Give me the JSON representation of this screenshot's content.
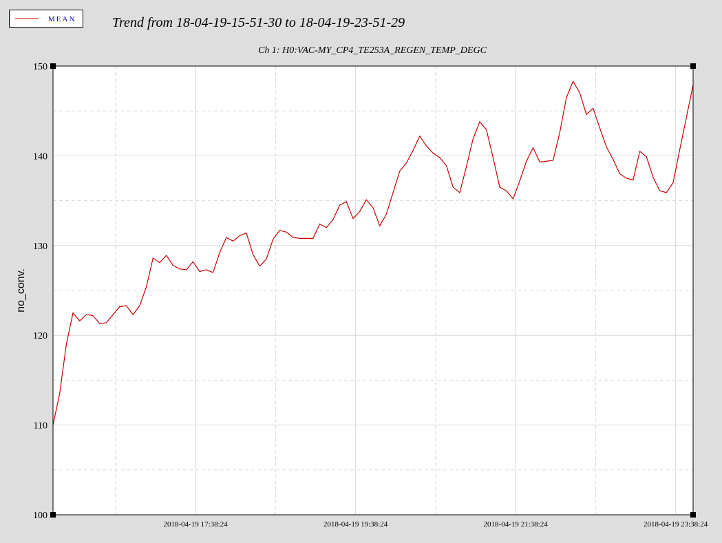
{
  "chart_data": {
    "type": "line",
    "title": "Trend from 18-04-19-15-51-30 to 18-04-19-23-51-29",
    "subtitle": "Ch 1: H0:VAC-MY_CP4_TE253A_REGEN_TEMP_DEGC",
    "y_label": "no_conv.",
    "legend": "top-left",
    "grid": true,
    "xlim": [
      "2018-04-19 15:51:30",
      "2018-04-19 23:51:29"
    ],
    "xticks": [
      "2018-04-19 17:38:24",
      "2018-04-19 19:38:24",
      "2018-04-19 21:38:24",
      "2018-04-19 23:38:24"
    ],
    "xticks_minor": [
      "2018-04-19 16:38:24",
      "2018-04-19 18:38:24",
      "2018-04-19 20:38:24",
      "2018-04-19 22:38:24"
    ],
    "ylim": [
      100,
      150
    ],
    "yticks": [
      100,
      110,
      120,
      130,
      140,
      150
    ],
    "yticks_minor": [
      105,
      115,
      125,
      135,
      145
    ],
    "x": [
      "2018-04-19 15:51:30",
      "2018-04-19 15:56:30",
      "2018-04-19 16:01:30",
      "2018-04-19 16:06:30",
      "2018-04-19 16:11:30",
      "2018-04-19 16:16:30",
      "2018-04-19 16:21:30",
      "2018-04-19 16:26:30",
      "2018-04-19 16:31:30",
      "2018-04-19 16:36:30",
      "2018-04-19 16:41:30",
      "2018-04-19 16:46:30",
      "2018-04-19 16:51:30",
      "2018-04-19 16:56:30",
      "2018-04-19 17:01:30",
      "2018-04-19 17:06:30",
      "2018-04-19 17:11:30",
      "2018-04-19 17:16:30",
      "2018-04-19 17:21:30",
      "2018-04-19 17:26:30",
      "2018-04-19 17:31:30",
      "2018-04-19 17:36:30",
      "2018-04-19 17:41:30",
      "2018-04-19 17:46:30",
      "2018-04-19 17:51:30",
      "2018-04-19 17:56:30",
      "2018-04-19 18:01:30",
      "2018-04-19 18:06:30",
      "2018-04-19 18:11:30",
      "2018-04-19 18:16:30",
      "2018-04-19 18:21:30",
      "2018-04-19 18:26:30",
      "2018-04-19 18:31:30",
      "2018-04-19 18:36:30",
      "2018-04-19 18:41:30",
      "2018-04-19 18:46:30",
      "2018-04-19 18:51:30",
      "2018-04-19 18:56:30",
      "2018-04-19 19:01:30",
      "2018-04-19 19:06:30",
      "2018-04-19 19:11:30",
      "2018-04-19 19:16:30",
      "2018-04-19 19:21:30",
      "2018-04-19 19:26:30",
      "2018-04-19 19:31:30",
      "2018-04-19 19:36:30",
      "2018-04-19 19:41:30",
      "2018-04-19 19:46:30",
      "2018-04-19 19:51:30",
      "2018-04-19 19:56:30",
      "2018-04-19 20:01:30",
      "2018-04-19 20:06:30",
      "2018-04-19 20:11:30",
      "2018-04-19 20:16:30",
      "2018-04-19 20:21:30",
      "2018-04-19 20:26:30",
      "2018-04-19 20:31:30",
      "2018-04-19 20:36:30",
      "2018-04-19 20:41:30",
      "2018-04-19 20:46:30",
      "2018-04-19 20:51:30",
      "2018-04-19 20:56:30",
      "2018-04-19 21:01:30",
      "2018-04-19 21:06:30",
      "2018-04-19 21:11:30",
      "2018-04-19 21:16:30",
      "2018-04-19 21:21:30",
      "2018-04-19 21:26:30",
      "2018-04-19 21:31:30",
      "2018-04-19 21:36:30",
      "2018-04-19 21:41:30",
      "2018-04-19 21:46:30",
      "2018-04-19 21:51:30",
      "2018-04-19 21:56:30",
      "2018-04-19 22:01:30",
      "2018-04-19 22:06:30",
      "2018-04-19 22:11:30",
      "2018-04-19 22:16:30",
      "2018-04-19 22:21:30",
      "2018-04-19 22:26:30",
      "2018-04-19 22:31:30",
      "2018-04-19 22:36:30",
      "2018-04-19 22:41:30",
      "2018-04-19 22:46:30",
      "2018-04-19 22:51:30",
      "2018-04-19 22:56:30",
      "2018-04-19 23:01:30",
      "2018-04-19 23:06:30",
      "2018-04-19 23:11:30",
      "2018-04-19 23:16:30",
      "2018-04-19 23:21:30",
      "2018-04-19 23:26:30",
      "2018-04-19 23:31:30",
      "2018-04-19 23:36:30",
      "2018-04-19 23:41:30",
      "2018-04-19 23:46:30",
      "2018-04-19 23:51:29"
    ],
    "series": [
      {
        "name": "MEAN",
        "color": "#cc0000",
        "values": [
          110,
          113.5,
          119,
          122.5,
          121.6,
          122.3,
          122.2,
          121.3,
          121.4,
          122.3,
          123.2,
          123.3,
          122.3,
          123.3,
          125.4,
          128.6,
          128.1,
          128.9,
          127.8,
          127.4,
          127.3,
          128.2,
          127.1,
          127.3,
          127,
          129.2,
          130.9,
          130.5,
          131.1,
          131.4,
          129,
          127.7,
          128.5,
          130.7,
          131.7,
          131.5,
          130.9,
          130.8,
          130.8,
          130.8,
          132.4,
          132,
          132.9,
          134.5,
          134.9,
          133,
          133.8,
          135.1,
          134.2,
          132.2,
          133.5,
          135.9,
          138.3,
          139.2,
          140.6,
          142.2,
          141.1,
          140.3,
          139.8,
          138.9,
          136.5,
          135.9,
          138.8,
          141.9,
          143.8,
          142.9,
          139.8,
          136.5,
          136.1,
          135.2,
          137.2,
          139.4,
          140.9,
          139.3,
          139.4,
          139.5,
          142.6,
          146.5,
          148.3,
          147,
          144.6,
          145.3,
          143.1,
          141,
          139.6,
          138,
          137.5,
          137.3,
          140.5,
          139.9,
          137.6,
          136.1,
          135.9,
          137,
          140.7,
          144.3,
          147.9
        ]
      }
    ]
  }
}
